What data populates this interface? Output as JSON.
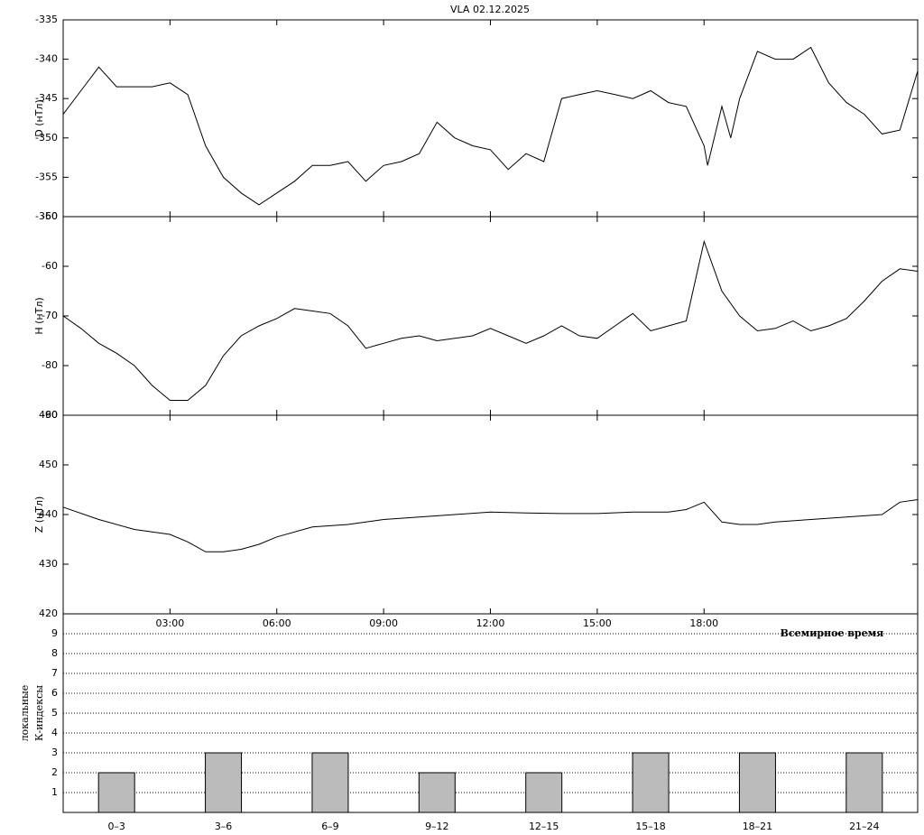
{
  "chart_data": [
    {
      "type": "line",
      "title": "VLA   02.12.2025",
      "ylabel": "D (нТл)",
      "color": "#000000",
      "x": [
        0,
        0.5,
        1,
        1.5,
        2,
        2.5,
        3,
        3.5,
        4,
        4.5,
        5,
        5.5,
        6,
        6.5,
        7,
        7.5,
        8,
        8.5,
        9,
        9.5,
        10,
        10.5,
        11,
        11.5,
        12,
        12.5,
        13,
        13.5,
        14,
        14.5,
        15,
        15.5,
        16,
        16.5,
        17,
        17.5,
        18,
        18.1,
        18.5,
        18.75,
        19,
        19.5,
        20,
        20.5,
        21,
        21.5,
        22,
        22.5,
        23,
        23.5,
        24
      ],
      "values": [
        -347,
        -344,
        -341,
        -343.5,
        -343.5,
        -343.5,
        -343,
        -344.5,
        -351,
        -355,
        -357,
        -358.5,
        -357,
        -355.5,
        -353.5,
        -353.5,
        -353,
        -355.5,
        -353.5,
        -353,
        -352,
        -348,
        -350,
        -351,
        -351.5,
        -354,
        -352,
        -353,
        -345,
        -344.5,
        -344,
        -344.5,
        -345,
        -344,
        -345.5,
        -346,
        -351,
        -353.5,
        -346,
        -350,
        -345,
        -339,
        -340,
        -340,
        -338.5,
        -343,
        -345.5,
        -347,
        -349.5,
        -349,
        -341.5
      ],
      "xlim": [
        0,
        24
      ],
      "ylim": [
        -360,
        -335
      ],
      "yticks": [
        -335,
        -340,
        -345,
        -350,
        -355,
        -360
      ]
    },
    {
      "type": "line",
      "ylabel": "H (нТл)",
      "color": "#000000",
      "x": [
        0,
        0.5,
        1,
        1.5,
        2,
        2.5,
        3,
        3.5,
        4,
        4.5,
        5,
        5.5,
        6,
        6.5,
        7,
        7.5,
        8,
        8.5,
        9,
        9.5,
        10,
        10.5,
        11,
        11.5,
        12,
        12.5,
        13,
        13.5,
        14,
        14.5,
        15,
        15.5,
        16,
        16.5,
        17,
        17.5,
        18,
        18.5,
        19,
        19.5,
        20,
        20.5,
        21,
        21.5,
        22,
        22.5,
        23,
        23.5,
        24
      ],
      "values": [
        -70,
        -72.5,
        -75.5,
        -77.5,
        -80,
        -84,
        -87,
        -87,
        -84,
        -78,
        -74,
        -72,
        -70.5,
        -68.5,
        -69,
        -69.5,
        -72,
        -76.5,
        -75.5,
        -74.5,
        -74,
        -75,
        -74.5,
        -74,
        -72.5,
        -74,
        -75.5,
        -74,
        -72,
        -74,
        -74.5,
        -72,
        -69.5,
        -73,
        -72,
        -71,
        -55,
        -65,
        -70,
        -73,
        -72.5,
        -71,
        -73,
        -72,
        -70.5,
        -67,
        -63,
        -60.5,
        -61
      ],
      "xlim": [
        0,
        24
      ],
      "ylim": [
        -90,
        -50
      ],
      "yticks": [
        -50,
        -60,
        -70,
        -80,
        -90
      ]
    },
    {
      "type": "line",
      "ylabel": "Z (нТл)",
      "xlabel": "Всемирное время",
      "color": "#000000",
      "x": [
        0,
        1,
        2,
        3,
        3.5,
        4,
        4.5,
        5,
        5.5,
        6,
        7,
        8,
        9,
        10,
        11,
        12,
        13,
        14,
        15,
        16,
        17,
        17.5,
        18,
        18.5,
        19,
        19.5,
        20,
        21,
        22,
        23,
        23.5,
        24
      ],
      "values": [
        441.5,
        439,
        437,
        436,
        434.5,
        432.5,
        432.5,
        433,
        434,
        435.5,
        437.5,
        438,
        439,
        439.5,
        440,
        440.5,
        440.3,
        440.2,
        440.2,
        440.5,
        440.5,
        441,
        442.5,
        438.5,
        438,
        438,
        438.5,
        439,
        439.5,
        440,
        442.5,
        443
      ],
      "xlim": [
        0,
        24
      ],
      "ylim": [
        420,
        460
      ],
      "yticks": [
        460,
        450,
        440,
        430,
        420
      ],
      "xticks": [
        {
          "value": 3,
          "label": "03:00"
        },
        {
          "value": 6,
          "label": "06:00"
        },
        {
          "value": 9,
          "label": "09:00"
        },
        {
          "value": 12,
          "label": "12:00"
        },
        {
          "value": 15,
          "label": "15:00"
        },
        {
          "value": 18,
          "label": "18:00"
        }
      ]
    },
    {
      "type": "bar",
      "ylabel": [
        "локальные",
        "К-индексы"
      ],
      "color": "#bbbbbb",
      "categories": [
        "0–3",
        "3–6",
        "6–9",
        "9–12",
        "12–15",
        "15–18",
        "18–21",
        "21–24"
      ],
      "values": [
        2,
        3,
        3,
        2,
        2,
        3,
        3,
        3
      ],
      "ylim": [
        0,
        10
      ],
      "yticks": [
        1,
        2,
        3,
        4,
        5,
        6,
        7,
        8,
        9
      ],
      "grid": true
    }
  ]
}
